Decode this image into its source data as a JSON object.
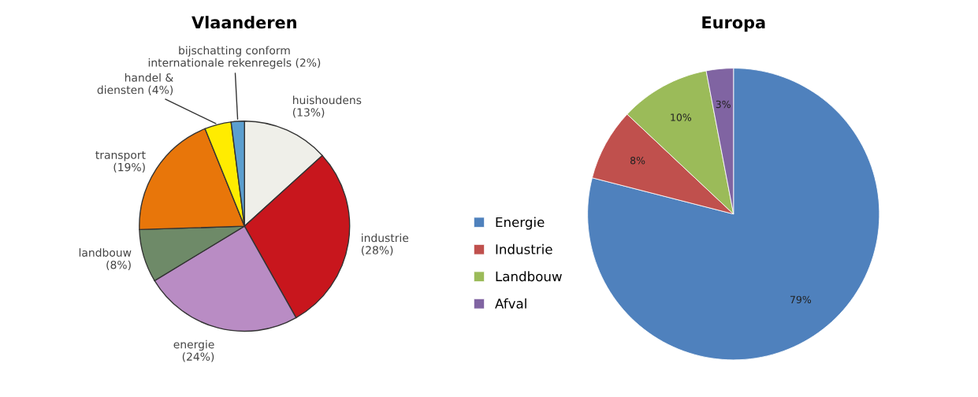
{
  "chart_data": [
    {
      "type": "pie",
      "title": "Vlaanderen",
      "categories": [
        "huishoudens",
        "industrie",
        "energie",
        "landbouw",
        "transport",
        "handel &\ndiensten",
        "bijschatting conform\ninternationale rekenregels"
      ],
      "values": [
        13,
        28,
        24,
        8,
        19,
        4,
        2
      ],
      "colors": [
        "#efefe9",
        "#c8161d",
        "#b98cc4",
        "#6e8a68",
        "#e8760a",
        "#ffec00",
        "#5b9fd0"
      ],
      "value_labels": [
        "(13%)",
        "(28%)",
        "(24%)",
        "(8%)",
        "(19%)",
        "(4%)",
        "(2%)"
      ],
      "legend": false
    },
    {
      "type": "pie",
      "title": "Europa",
      "categories": [
        "Energie",
        "Industrie",
        "Landbouw",
        "Afval"
      ],
      "values": [
        79,
        8,
        10,
        3
      ],
      "colors": [
        "#4f81bd",
        "#c0504d",
        "#9bbb59",
        "#8064a2"
      ],
      "value_labels": [
        "79%",
        "8%",
        "10%",
        "3%"
      ],
      "legend": "left"
    }
  ]
}
